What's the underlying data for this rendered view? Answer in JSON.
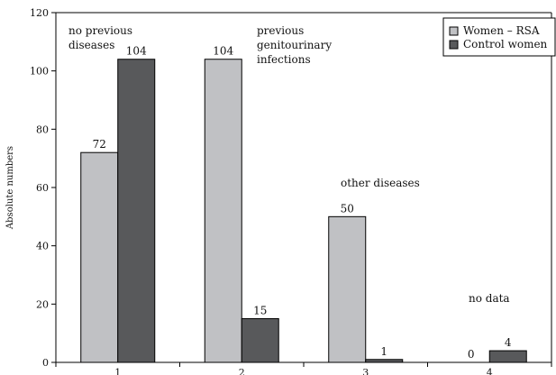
{
  "chart_data": {
    "type": "bar",
    "title": "",
    "xlabel": "",
    "ylabel": "Absolute numbers",
    "ylim": [
      0,
      120
    ],
    "yticks": [
      0,
      20,
      40,
      60,
      80,
      100,
      120
    ],
    "categories": [
      "1",
      "2",
      "3",
      "4"
    ],
    "series": [
      {
        "name": "Women – RSA",
        "values": [
          72,
          104,
          50,
          0
        ],
        "color": "#c0c1c4"
      },
      {
        "name": "Control women",
        "values": [
          104,
          15,
          1,
          4
        ],
        "color": "#58595b"
      }
    ],
    "annotations": [
      {
        "category": "1",
        "lines": [
          "no previous",
          "diseases"
        ]
      },
      {
        "category": "2",
        "lines": [
          "previous",
          "genitourinary",
          "infections"
        ]
      },
      {
        "category": "3",
        "lines": [
          "other diseases"
        ]
      },
      {
        "category": "4",
        "lines": [
          "no data"
        ]
      }
    ],
    "legend": "top-right",
    "grid": false
  }
}
